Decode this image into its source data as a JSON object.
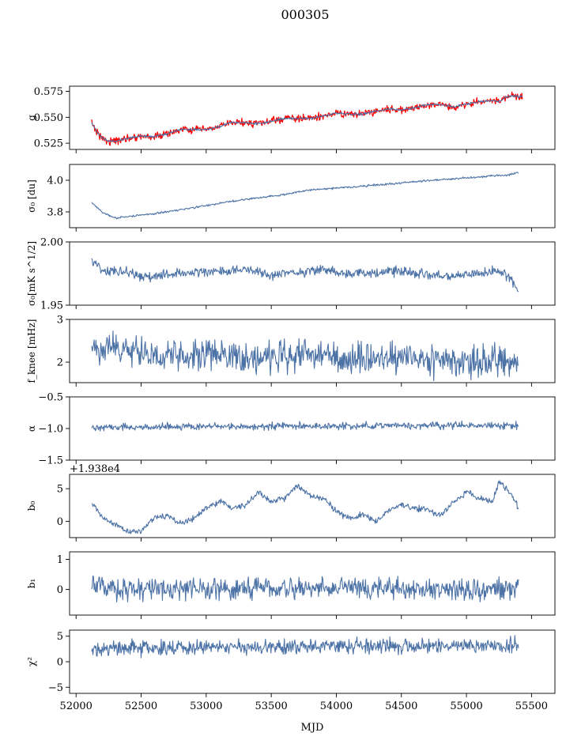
{
  "figure": {
    "title": "000305",
    "xlabel": "MJD",
    "offset_label": "+1.938e4",
    "x_ticks": [
      52000,
      52500,
      53000,
      53500,
      54000,
      54500,
      55000,
      55500
    ],
    "xlim": [
      51950,
      55680
    ]
  },
  "colors": {
    "series": "#4c72a6",
    "fit": "#ff0000",
    "axes": "#000000"
  },
  "chart_data": [
    {
      "type": "line",
      "ylabel": "g",
      "ylim": [
        0.519,
        0.58
      ],
      "y_ticks": [
        0.525,
        0.55,
        0.575
      ],
      "y_tick_labels": [
        "0.525",
        "0.550",
        "0.575"
      ],
      "noise": 0.0007,
      "overlay": {
        "color": "#ff0000",
        "noise": 0.0022
      },
      "series": [
        {
          "x": [
            52120,
            52160,
            52200,
            52250,
            52300,
            52400,
            52500,
            52600,
            52700,
            52800,
            52900,
            53000,
            53100,
            53200,
            53300,
            53400,
            53500,
            53600,
            53700,
            53800,
            53900,
            54000,
            54100,
            54200,
            54300,
            54400,
            54500,
            54600,
            54700,
            54800,
            54900,
            55000,
            55100,
            55200,
            55250,
            55300,
            55350,
            55400,
            55430
          ],
          "y": [
            0.545,
            0.536,
            0.53,
            0.527,
            0.527,
            0.53,
            0.532,
            0.531,
            0.534,
            0.538,
            0.538,
            0.538,
            0.541,
            0.545,
            0.545,
            0.544,
            0.546,
            0.549,
            0.549,
            0.549,
            0.551,
            0.554,
            0.553,
            0.553,
            0.556,
            0.558,
            0.557,
            0.559,
            0.562,
            0.562,
            0.56,
            0.563,
            0.565,
            0.566,
            0.565,
            0.569,
            0.571,
            0.57,
            0.57
          ]
        }
      ]
    },
    {
      "type": "line",
      "ylabel": "σ₀ [du]",
      "ylim": [
        3.7,
        4.1
      ],
      "y_ticks": [
        3.8,
        4.0
      ],
      "y_tick_labels": [
        "3.8",
        "4.0"
      ],
      "noise": 0.004,
      "series": [
        {
          "x": [
            52120,
            52200,
            52300,
            52400,
            52500,
            52700,
            53000,
            53300,
            53600,
            53800,
            54000,
            54300,
            54600,
            54900,
            55100,
            55200,
            55300,
            55400
          ],
          "y": [
            3.86,
            3.8,
            3.76,
            3.77,
            3.78,
            3.8,
            3.84,
            3.88,
            3.91,
            3.94,
            3.95,
            3.97,
            3.99,
            4.01,
            4.02,
            4.03,
            4.03,
            4.05
          ]
        }
      ]
    },
    {
      "type": "line",
      "ylabel": "σ₀[mK s^1/2]",
      "ylim": [
        1.95,
        2.0
      ],
      "y_ticks": [
        1.95,
        2.0
      ],
      "y_tick_labels": [
        "1.95",
        "2.00"
      ],
      "noise": 0.0024,
      "series": [
        {
          "x": [
            52120,
            52200,
            52400,
            52500,
            52700,
            52900,
            53100,
            53300,
            53500,
            53700,
            53900,
            54100,
            54300,
            54500,
            54700,
            54900,
            55100,
            55250,
            55300,
            55350,
            55400
          ],
          "y": [
            1.986,
            1.978,
            1.976,
            1.972,
            1.974,
            1.976,
            1.977,
            1.978,
            1.974,
            1.976,
            1.978,
            1.975,
            1.976,
            1.977,
            1.974,
            1.973,
            1.975,
            1.977,
            1.974,
            1.968,
            1.962
          ]
        }
      ]
    },
    {
      "type": "line",
      "ylabel": "f_knee [mHz]",
      "ylim": [
        1.52,
        3.0
      ],
      "y_ticks": [
        2,
        3
      ],
      "y_tick_labels": [
        "2",
        "3"
      ],
      "noise": 0.22,
      "series": [
        {
          "x": [
            52120,
            52300,
            52500,
            52700,
            52900,
            53100,
            53300,
            53500,
            53700,
            53900,
            54100,
            54300,
            54500,
            54700,
            54900,
            55100,
            55300,
            55400
          ],
          "y": [
            2.3,
            2.3,
            2.2,
            2.15,
            2.15,
            2.15,
            2.1,
            2.1,
            2.15,
            2.15,
            2.1,
            2.1,
            2.1,
            2.05,
            2.05,
            2.0,
            2.05,
            2.0
          ]
        }
      ]
    },
    {
      "type": "line",
      "ylabel": "α",
      "ylim": [
        -1.5,
        -0.5
      ],
      "y_ticks": [
        -1.5,
        -1.0,
        -0.5
      ],
      "y_tick_labels": [
        "−1.5",
        "−1.0",
        "−0.5"
      ],
      "noise": 0.035,
      "series": [
        {
          "x": [
            52120,
            53000,
            54000,
            55000,
            55400
          ],
          "y": [
            -0.98,
            -0.97,
            -0.96,
            -0.95,
            -0.96
          ]
        }
      ]
    },
    {
      "type": "line",
      "ylabel": "b₀",
      "ylim": [
        -2.5,
        7.2
      ],
      "y_ticks": [
        0,
        5
      ],
      "y_tick_labels": [
        "0",
        "5"
      ],
      "noise": 0.28,
      "series": [
        {
          "x": [
            52120,
            52200,
            52300,
            52400,
            52500,
            52600,
            52700,
            52800,
            52900,
            53000,
            53100,
            53200,
            53300,
            53400,
            53500,
            53600,
            53700,
            53800,
            53900,
            54000,
            54100,
            54200,
            54300,
            54400,
            54500,
            54600,
            54700,
            54800,
            54900,
            55000,
            55100,
            55200,
            55250,
            55300,
            55350,
            55400
          ],
          "y": [
            3.0,
            0.5,
            -0.5,
            -1.5,
            -1.6,
            0.5,
            1.0,
            -0.3,
            0.5,
            2.0,
            3.0,
            2.0,
            2.5,
            4.5,
            3.0,
            3.5,
            5.5,
            4.0,
            3.5,
            1.5,
            0.5,
            1.0,
            0.0,
            1.5,
            2.5,
            2.0,
            1.8,
            0.8,
            3.0,
            4.5,
            3.5,
            3.0,
            6.0,
            5.0,
            4.0,
            2.0
          ]
        }
      ]
    },
    {
      "type": "line",
      "ylabel": "b₁",
      "ylim": [
        -0.85,
        1.25
      ],
      "y_ticks": [
        0,
        1
      ],
      "y_tick_labels": [
        "0",
        "1"
      ],
      "noise": 0.22,
      "series": [
        {
          "x": [
            52120,
            53000,
            54000,
            55000,
            55400
          ],
          "y": [
            0.05,
            0.0,
            0.05,
            0.0,
            0.05
          ]
        }
      ]
    },
    {
      "type": "line",
      "ylabel": "χ²",
      "ylim": [
        -6.2,
        6.2
      ],
      "y_ticks": [
        -5,
        0,
        5
      ],
      "y_tick_labels": [
        "−5",
        "0",
        "5"
      ],
      "noise": 0.9,
      "series": [
        {
          "x": [
            52120,
            53000,
            54000,
            55000,
            55400
          ],
          "y": [
            2.5,
            3.0,
            3.0,
            3.0,
            3.2
          ]
        }
      ]
    }
  ]
}
